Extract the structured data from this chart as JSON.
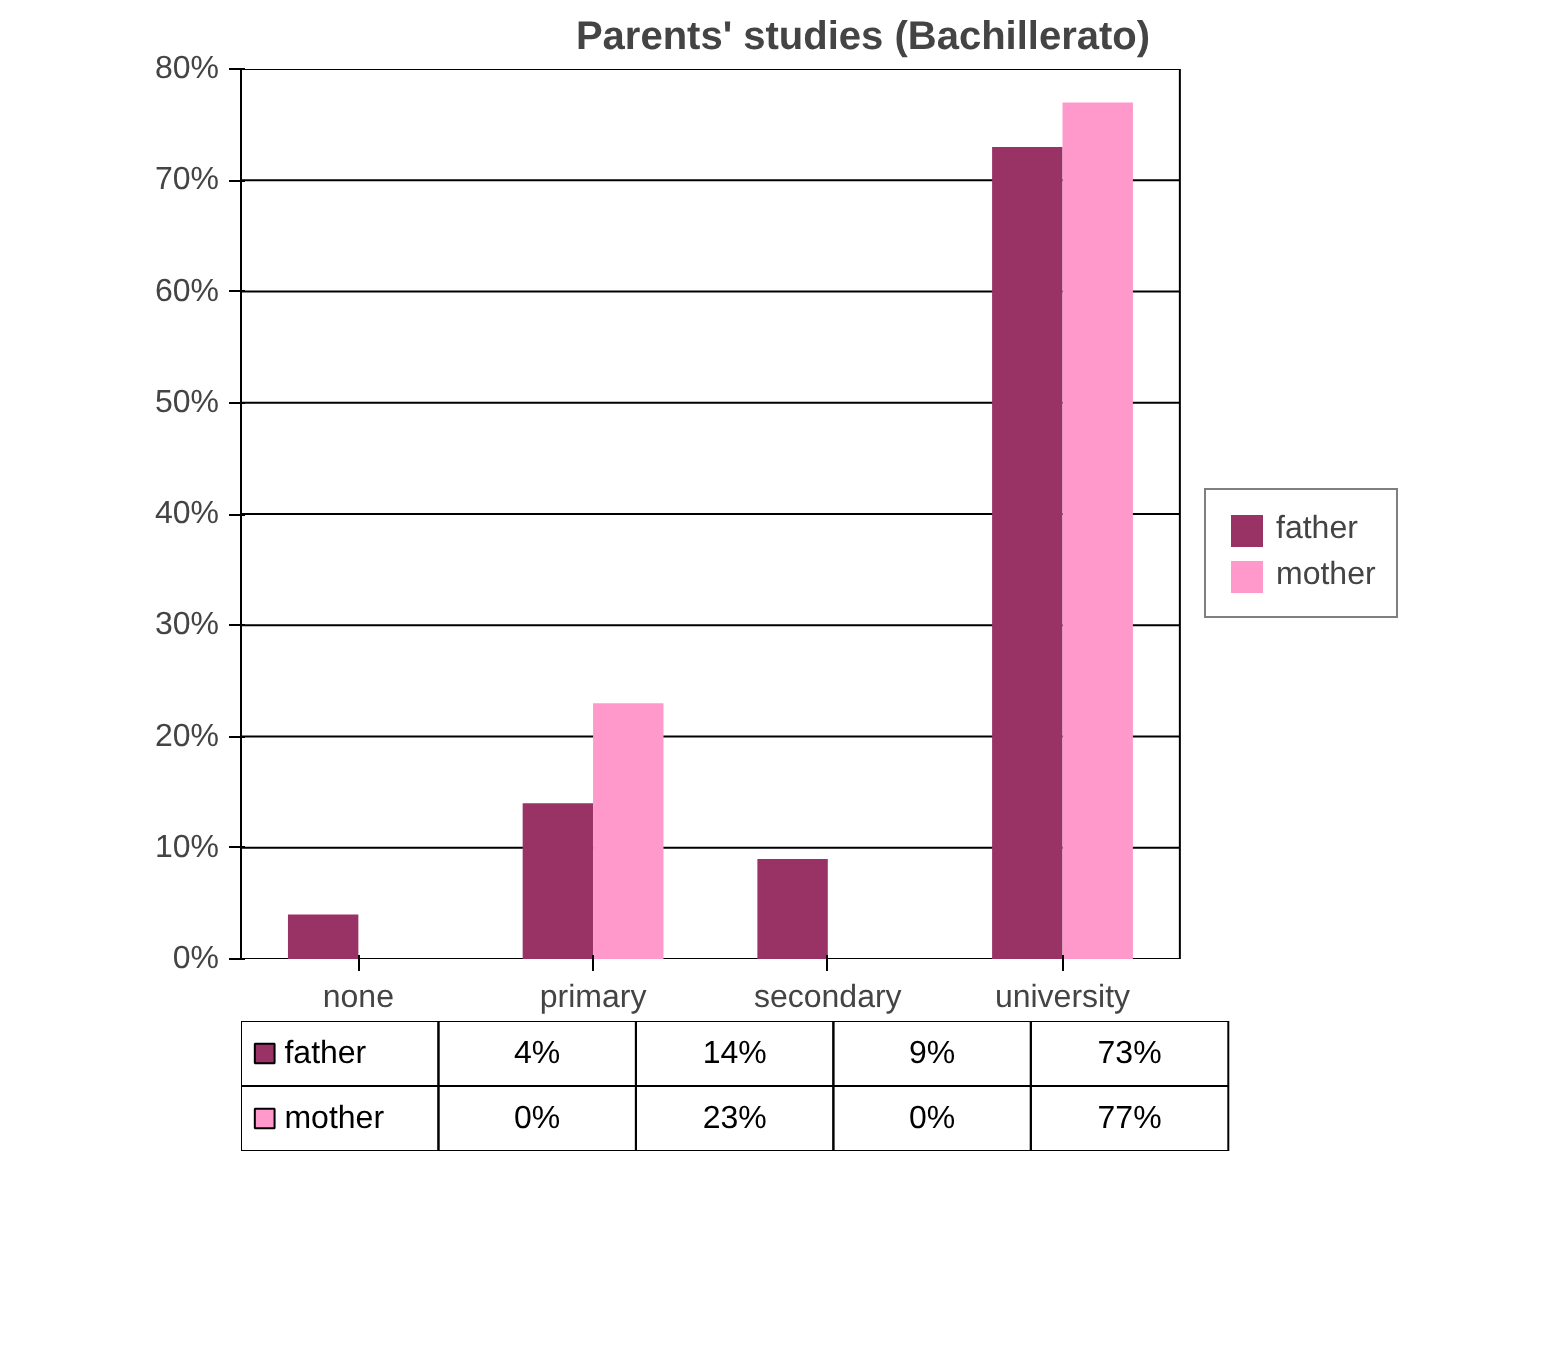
{
  "chart_data": {
    "type": "bar",
    "title": "Parents' studies (Bachillerato)",
    "categories": [
      "none",
      "primary",
      "secondary",
      "university"
    ],
    "series": [
      {
        "name": "father",
        "color": "#993366",
        "values": [
          4,
          14,
          9,
          73
        ]
      },
      {
        "name": "mother",
        "color": "#ff99cc",
        "values": [
          0,
          23,
          0,
          77
        ]
      }
    ],
    "value_labels": [
      [
        "4%",
        "14%",
        "9%",
        "73%"
      ],
      [
        "0%",
        "23%",
        "0%",
        "77%"
      ]
    ],
    "ylim": [
      0,
      80
    ],
    "yticks": [
      {
        "value": 0,
        "label": "0%"
      },
      {
        "value": 10,
        "label": "10%"
      },
      {
        "value": 20,
        "label": "20%"
      },
      {
        "value": 30,
        "label": "30%"
      },
      {
        "value": 40,
        "label": "40%"
      },
      {
        "value": 50,
        "label": "50%"
      },
      {
        "value": 60,
        "label": "60%"
      },
      {
        "value": 70,
        "label": "70%"
      },
      {
        "value": 80,
        "label": "80%"
      }
    ],
    "grid": "y",
    "legend": "right"
  }
}
